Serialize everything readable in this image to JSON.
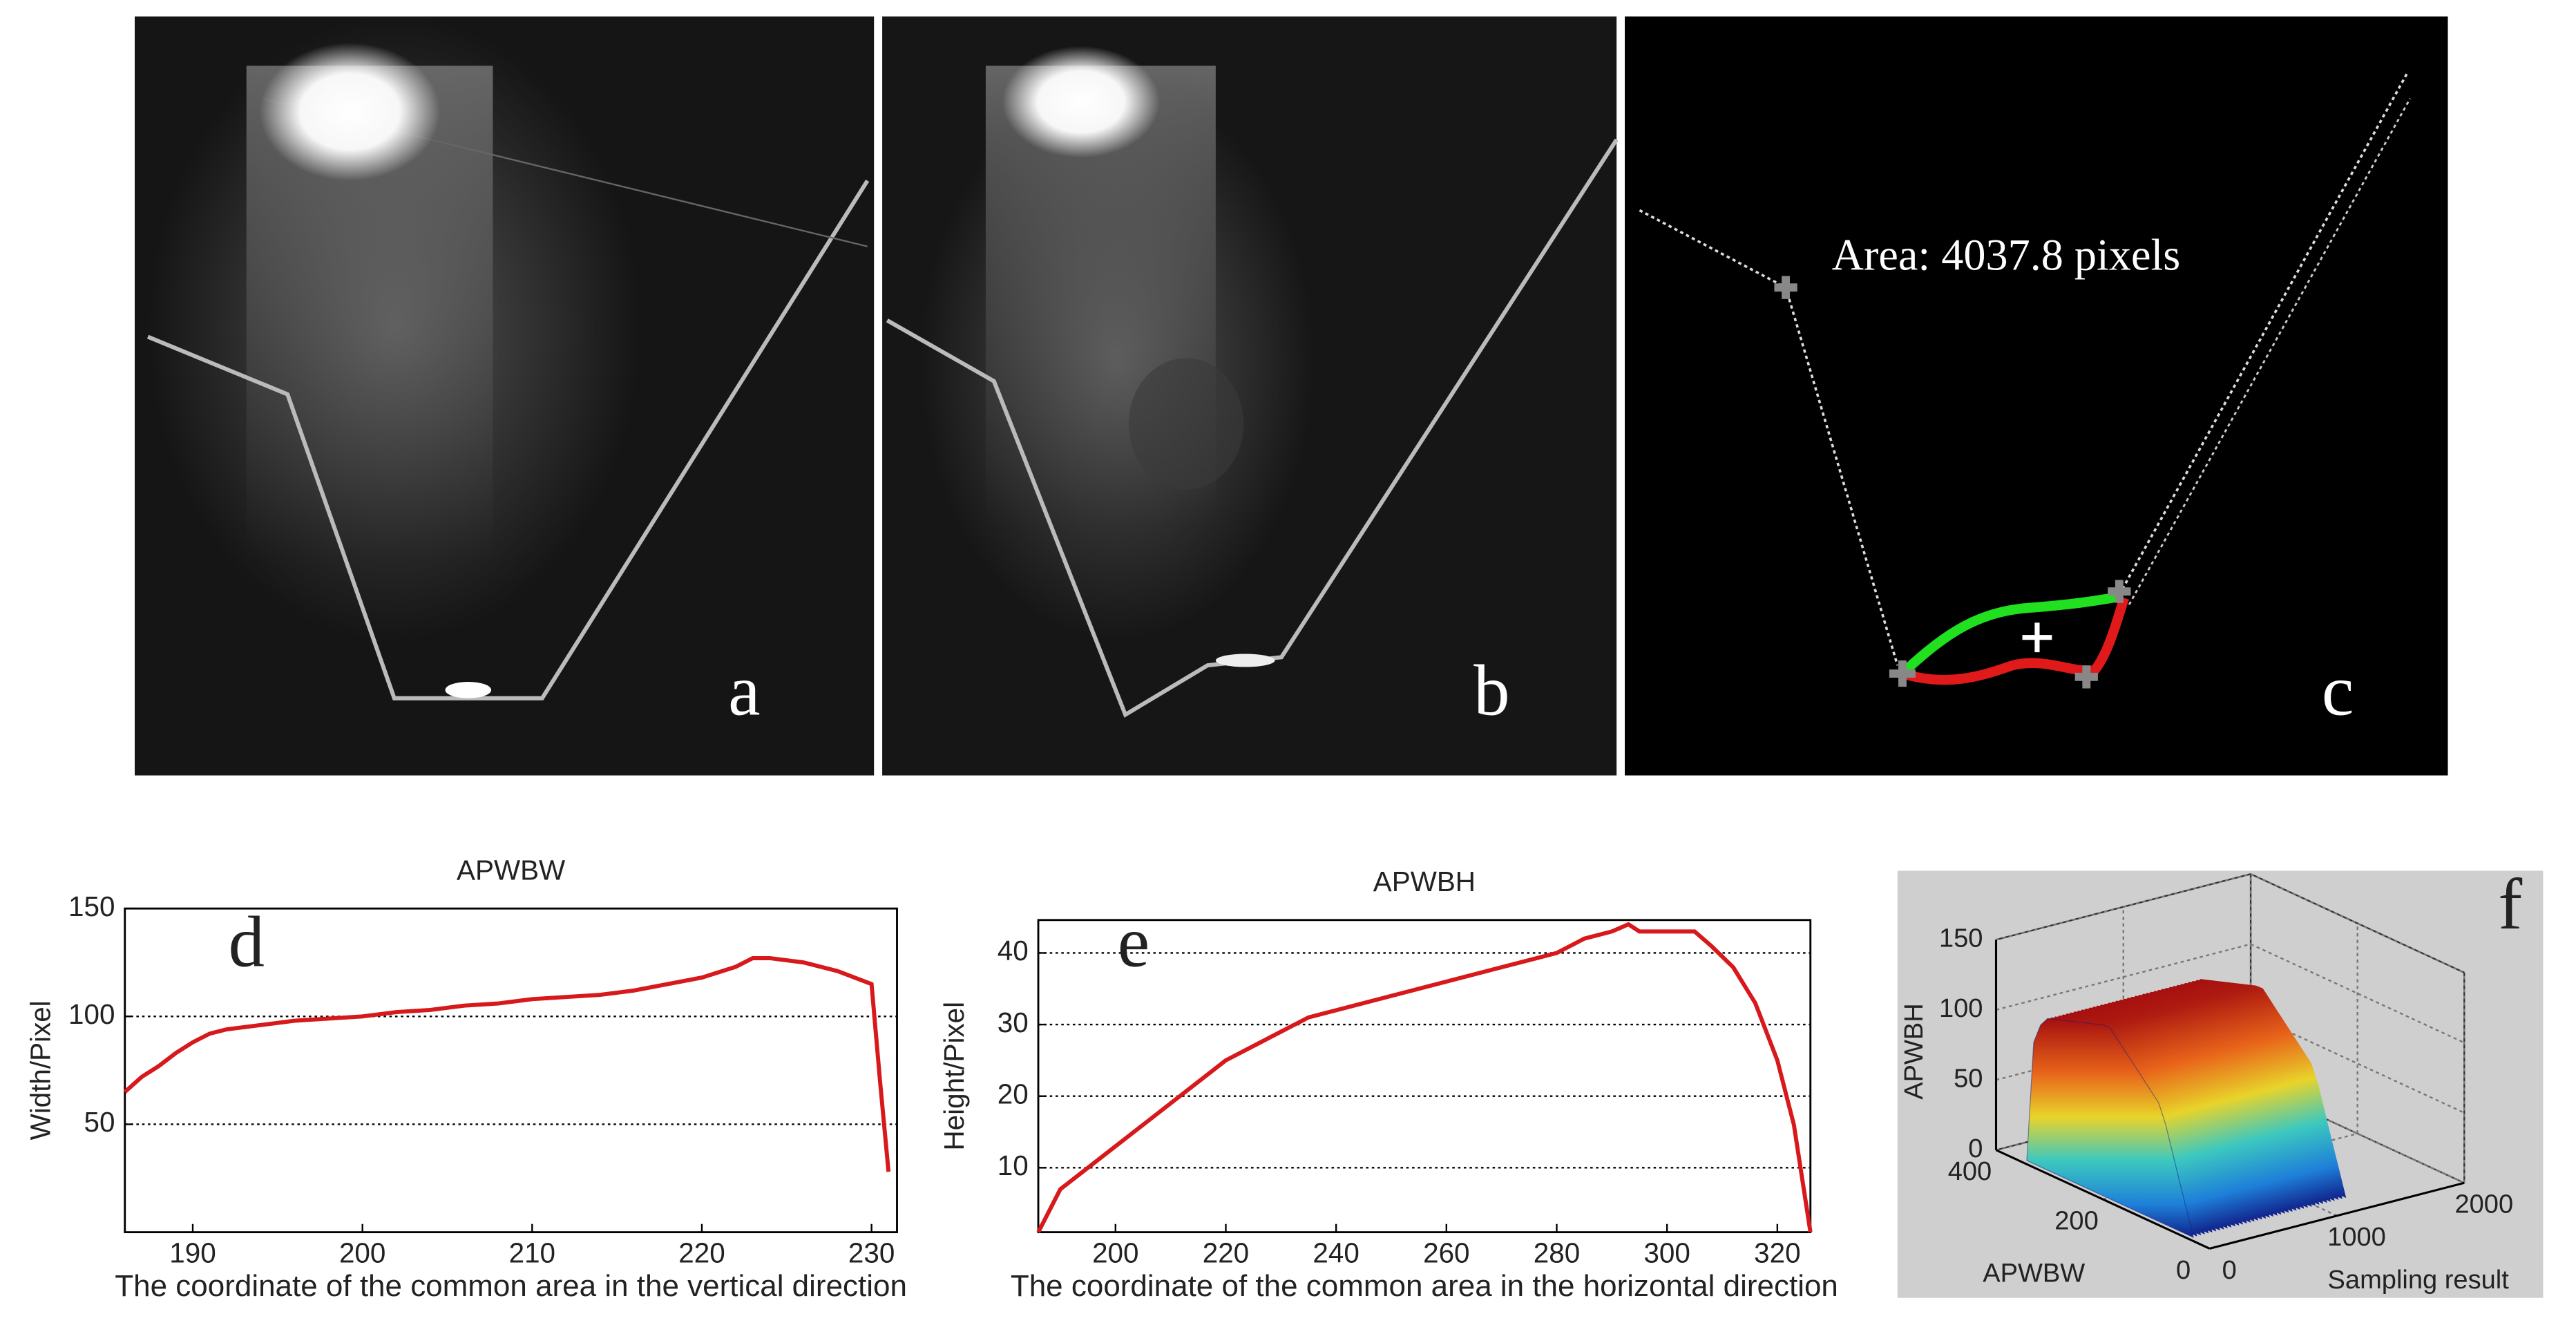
{
  "images": [
    {
      "label": "a"
    },
    {
      "label": "b"
    },
    {
      "label": "c",
      "annotation": "Area: 4037.8 pixels"
    }
  ],
  "chart_data": [
    {
      "type": "line",
      "title": "APWBW",
      "annotation": "d",
      "xlabel": "The coordinate of the common area in the vertical direction",
      "ylabel": "Width/Pixel",
      "color": "#d7191c",
      "x": [
        186,
        187,
        188,
        189,
        190,
        191,
        192,
        194,
        196,
        198,
        200,
        202,
        204,
        206,
        208,
        210,
        212,
        214,
        216,
        218,
        220,
        222,
        223,
        224,
        226,
        228,
        230,
        230.5,
        231
      ],
      "values": [
        65,
        72,
        77,
        83,
        88,
        92,
        94,
        96,
        98,
        99,
        100,
        102,
        103,
        105,
        106,
        108,
        109,
        110,
        112,
        115,
        118,
        123,
        127,
        127,
        125,
        121,
        115,
        70,
        28
      ],
      "xlim": [
        186,
        231.5
      ],
      "xticks": [
        190,
        200,
        210,
        220,
        230
      ],
      "ylim": [
        0,
        150
      ],
      "yticks": [
        50,
        100,
        150
      ],
      "grid": true
    },
    {
      "type": "line",
      "title": "APWBH",
      "annotation": "e",
      "xlabel": "The coordinate of the common area in the horizontal direction",
      "ylabel": "Height/Pixel",
      "color": "#d7191c",
      "x": [
        186,
        190,
        195,
        200,
        205,
        210,
        215,
        220,
        225,
        230,
        235,
        240,
        250,
        260,
        270,
        280,
        285,
        290,
        293,
        295,
        300,
        305,
        308,
        312,
        316,
        320,
        323,
        326
      ],
      "values": [
        1,
        7,
        10,
        13,
        16,
        19,
        22,
        25,
        27,
        29,
        31,
        32,
        34,
        36,
        38,
        40,
        42,
        43,
        44,
        43,
        43,
        43,
        41,
        38,
        33,
        25,
        16,
        1
      ],
      "xlim": [
        186,
        326
      ],
      "xticks": [
        200,
        220,
        240,
        260,
        280,
        300,
        320
      ],
      "ylim": [
        1,
        44.6
      ],
      "yticks": [
        10,
        20,
        30,
        40
      ],
      "grid": true
    },
    {
      "type": "surface3d",
      "annotation": "f",
      "xlabel": "Sampling result",
      "ylabel": "APWBW",
      "zlabel": "APWBH",
      "xlim": [
        0,
        2000
      ],
      "xticks": [
        0,
        1000,
        2000
      ],
      "ylim": [
        0,
        400
      ],
      "yticks": [
        0,
        200,
        400
      ],
      "zlim": [
        0,
        150
      ],
      "zticks": [
        0,
        50,
        100,
        150
      ],
      "grid": true
    }
  ]
}
